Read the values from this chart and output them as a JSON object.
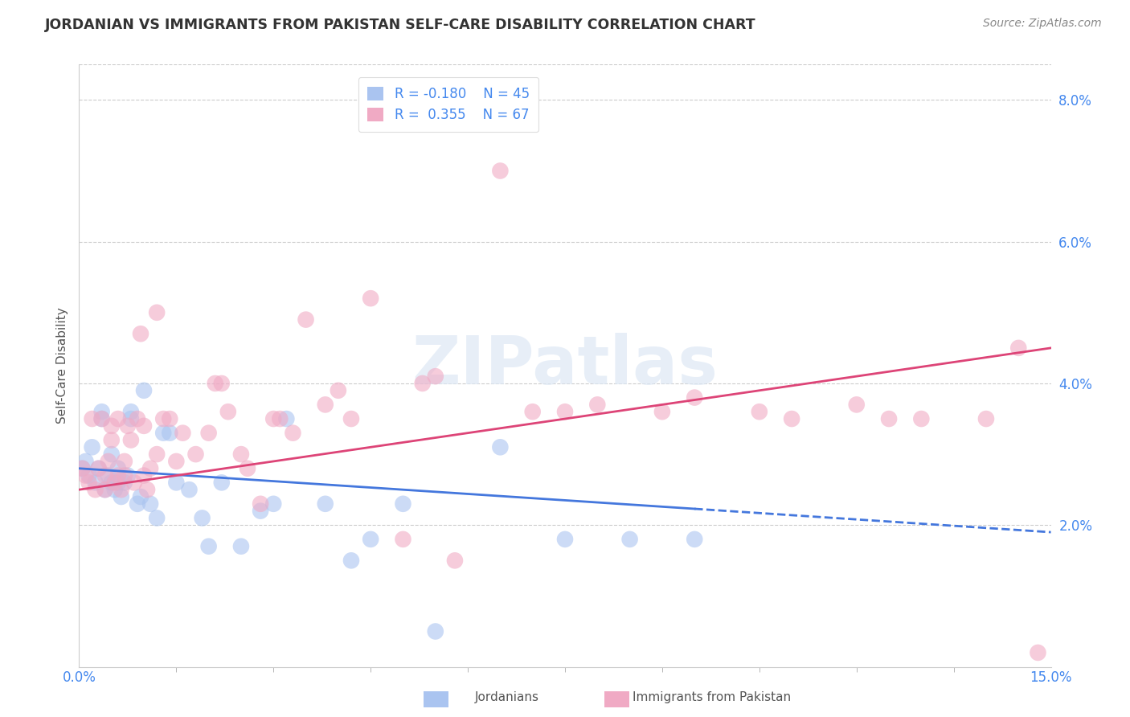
{
  "title": "JORDANIAN VS IMMIGRANTS FROM PAKISTAN SELF-CARE DISABILITY CORRELATION CHART",
  "source": "Source: ZipAtlas.com",
  "ylabel": "Self-Care Disability",
  "legend_entries": [
    "Jordanians",
    "Immigrants from Pakistan"
  ],
  "R_jordanians": -0.18,
  "N_jordanians": 45,
  "R_pakistan": 0.355,
  "N_pakistan": 67,
  "x_min": 0.0,
  "x_max": 15.0,
  "y_min": 0.0,
  "y_max": 8.5,
  "color_jordanians": "#aac4f0",
  "color_pakistan": "#f0aac4",
  "color_line_jordanians": "#4477dd",
  "color_line_pakistan": "#dd4477",
  "color_title": "#333333",
  "color_axis_text": "#4488ee",
  "color_legend_text": "#4488ee",
  "watermark": "ZIPatlas",
  "background_color": "#ffffff",
  "jordanians_x": [
    0.05,
    0.1,
    0.15,
    0.2,
    0.25,
    0.3,
    0.35,
    0.35,
    0.4,
    0.45,
    0.5,
    0.5,
    0.55,
    0.6,
    0.6,
    0.65,
    0.7,
    0.75,
    0.8,
    0.8,
    0.9,
    0.95,
    1.0,
    1.1,
    1.2,
    1.3,
    1.4,
    1.5,
    1.7,
    1.9,
    2.0,
    2.2,
    2.5,
    2.8,
    3.0,
    3.2,
    3.8,
    4.2,
    4.5,
    5.0,
    5.5,
    6.5,
    7.5,
    8.5,
    9.5
  ],
  "jordanians_y": [
    2.8,
    2.9,
    2.7,
    3.1,
    2.6,
    2.8,
    3.5,
    3.6,
    2.5,
    2.7,
    2.6,
    3.0,
    2.5,
    2.8,
    2.6,
    2.4,
    2.6,
    2.7,
    3.5,
    3.6,
    2.3,
    2.4,
    3.9,
    2.3,
    2.1,
    3.3,
    3.3,
    2.6,
    2.5,
    2.1,
    1.7,
    2.6,
    1.7,
    2.2,
    2.3,
    3.5,
    2.3,
    1.5,
    1.8,
    2.3,
    0.5,
    3.1,
    1.8,
    1.8,
    1.8
  ],
  "pakistan_x": [
    0.05,
    0.1,
    0.15,
    0.2,
    0.25,
    0.3,
    0.35,
    0.4,
    0.4,
    0.45,
    0.5,
    0.5,
    0.55,
    0.6,
    0.6,
    0.65,
    0.7,
    0.7,
    0.75,
    0.8,
    0.85,
    0.9,
    0.95,
    1.0,
    1.0,
    1.05,
    1.1,
    1.2,
    1.2,
    1.3,
    1.4,
    1.5,
    1.6,
    1.8,
    2.0,
    2.1,
    2.2,
    2.3,
    2.5,
    2.6,
    2.8,
    3.0,
    3.1,
    3.3,
    3.5,
    3.8,
    4.0,
    4.2,
    4.5,
    5.0,
    5.3,
    5.5,
    5.8,
    6.5,
    7.0,
    7.5,
    8.0,
    9.0,
    9.5,
    10.5,
    11.0,
    12.0,
    12.5,
    13.0,
    14.0,
    14.5,
    14.8
  ],
  "pakistan_y": [
    2.8,
    2.7,
    2.6,
    3.5,
    2.5,
    2.8,
    3.5,
    2.5,
    2.7,
    2.9,
    3.4,
    3.2,
    2.6,
    2.7,
    3.5,
    2.5,
    2.7,
    2.9,
    3.4,
    3.2,
    2.6,
    3.5,
    4.7,
    3.4,
    2.7,
    2.5,
    2.8,
    3.0,
    5.0,
    3.5,
    3.5,
    2.9,
    3.3,
    3.0,
    3.3,
    4.0,
    4.0,
    3.6,
    3.0,
    2.8,
    2.3,
    3.5,
    3.5,
    3.3,
    4.9,
    3.7,
    3.9,
    3.5,
    5.2,
    1.8,
    4.0,
    4.1,
    1.5,
    7.0,
    3.6,
    3.6,
    3.7,
    3.6,
    3.8,
    3.6,
    3.5,
    3.7,
    3.5,
    3.5,
    3.5,
    4.5,
    0.2
  ]
}
